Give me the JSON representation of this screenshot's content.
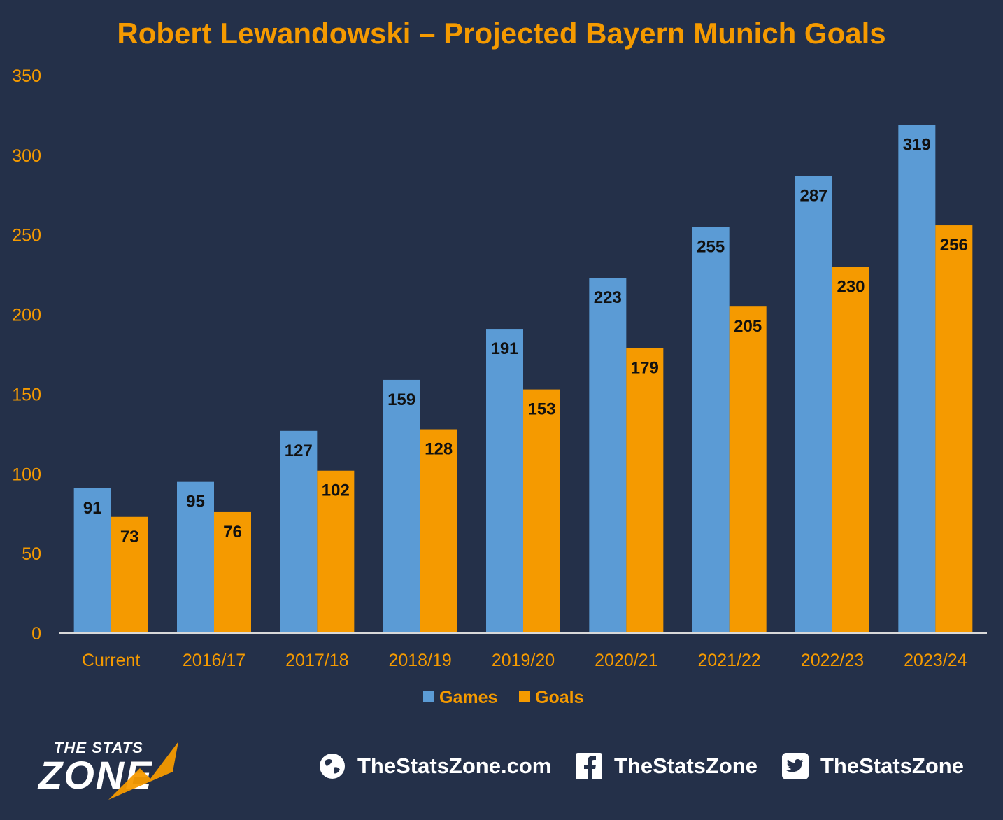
{
  "chart_data": {
    "type": "bar",
    "title": "Robert Lewandowski – Projected Bayern Munich Goals",
    "categories": [
      "Current",
      "2016/17",
      "2017/18",
      "2018/19",
      "2019/20",
      "2020/21",
      "2021/22",
      "2022/23",
      "2023/24"
    ],
    "series": [
      {
        "name": "Games",
        "color": "#5b9bd5",
        "values": [
          91,
          95,
          127,
          159,
          191,
          223,
          255,
          287,
          319
        ]
      },
      {
        "name": "Goals",
        "color": "#f59a00",
        "values": [
          73,
          76,
          102,
          128,
          153,
          179,
          205,
          230,
          256
        ]
      }
    ],
    "ylim": [
      0,
      350
    ],
    "yticks": [
      0,
      50,
      100,
      150,
      200,
      250,
      300,
      350
    ],
    "grid": false,
    "legend": "bottom-center",
    "colors": {
      "text": "#f59a00",
      "background": "#243049",
      "axis": "#d9d9d9"
    }
  },
  "footer": {
    "logo": {
      "line1": "THE STATS",
      "line2": "ZONE"
    },
    "links": [
      {
        "icon": "globe-icon",
        "label": "TheStatsZone.com"
      },
      {
        "icon": "facebook-icon",
        "label": "TheStatsZone"
      },
      {
        "icon": "twitter-icon",
        "label": "TheStatsZone"
      }
    ]
  }
}
